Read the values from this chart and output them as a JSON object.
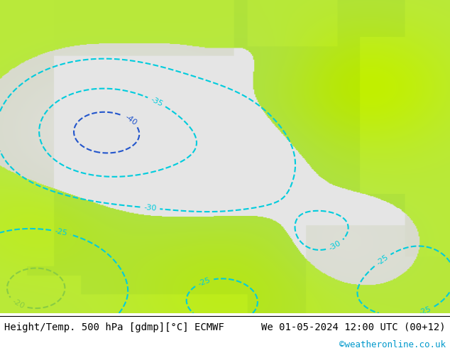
{
  "title_left": "Height/Temp. 500 hPa [gdmp][°C] ECMWF",
  "title_right": "We 01-05-2024 12:00 UTC (00+12)",
  "credit": "©weatheronline.co.uk",
  "bg_color": "#ffffff",
  "height_contour_color": "#000000",
  "temp_contour_cyan": "#00ccdd",
  "temp_contour_blue": "#2255cc",
  "temp_contour_green": "#88cc44",
  "temp_contour_orange": "#ff8800",
  "temp_contour_teal": "#009966",
  "label_fontsize": 8,
  "title_fontsize": 10,
  "credit_fontsize": 9,
  "figsize": [
    6.34,
    4.9
  ],
  "dpi": 100
}
